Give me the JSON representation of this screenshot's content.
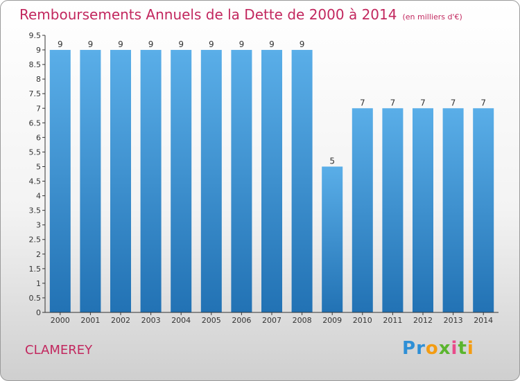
{
  "title": "Remboursements Annuels de la Dette de 2000 à 2014",
  "unit": "(en milliers d'€)",
  "commune": "CLAMEREY",
  "logo": {
    "letters": [
      "P",
      "r",
      "o",
      "x",
      "i",
      "t",
      "i"
    ],
    "colors": [
      "#2e8fd6",
      "#2e8fd6",
      "#f39c12",
      "#5bb52e",
      "#e84b8a",
      "#5bb52e",
      "#f39c12"
    ]
  },
  "colors": {
    "title": "#c2275e",
    "bar_top": "#5aaee8",
    "bar_bottom": "#2272b4",
    "axis": "#333333"
  },
  "chart_data": {
    "type": "bar",
    "categories": [
      "2000",
      "2001",
      "2002",
      "2003",
      "2004",
      "2005",
      "2006",
      "2007",
      "2008",
      "2009",
      "2010",
      "2011",
      "2012",
      "2013",
      "2014"
    ],
    "values": [
      9,
      9,
      9,
      9,
      9,
      9,
      9,
      9,
      9,
      5,
      7,
      7,
      7,
      7,
      7
    ],
    "ylim": [
      0,
      9.5
    ],
    "yticks": [
      "0",
      "0.5",
      "1",
      "1.5",
      "2",
      "2.5",
      "3",
      "3.5",
      "4",
      "4.5",
      "5",
      "5.5",
      "6",
      "6.5",
      "7",
      "7.5",
      "8",
      "8.5",
      "9",
      "9.5"
    ],
    "grid": false
  }
}
